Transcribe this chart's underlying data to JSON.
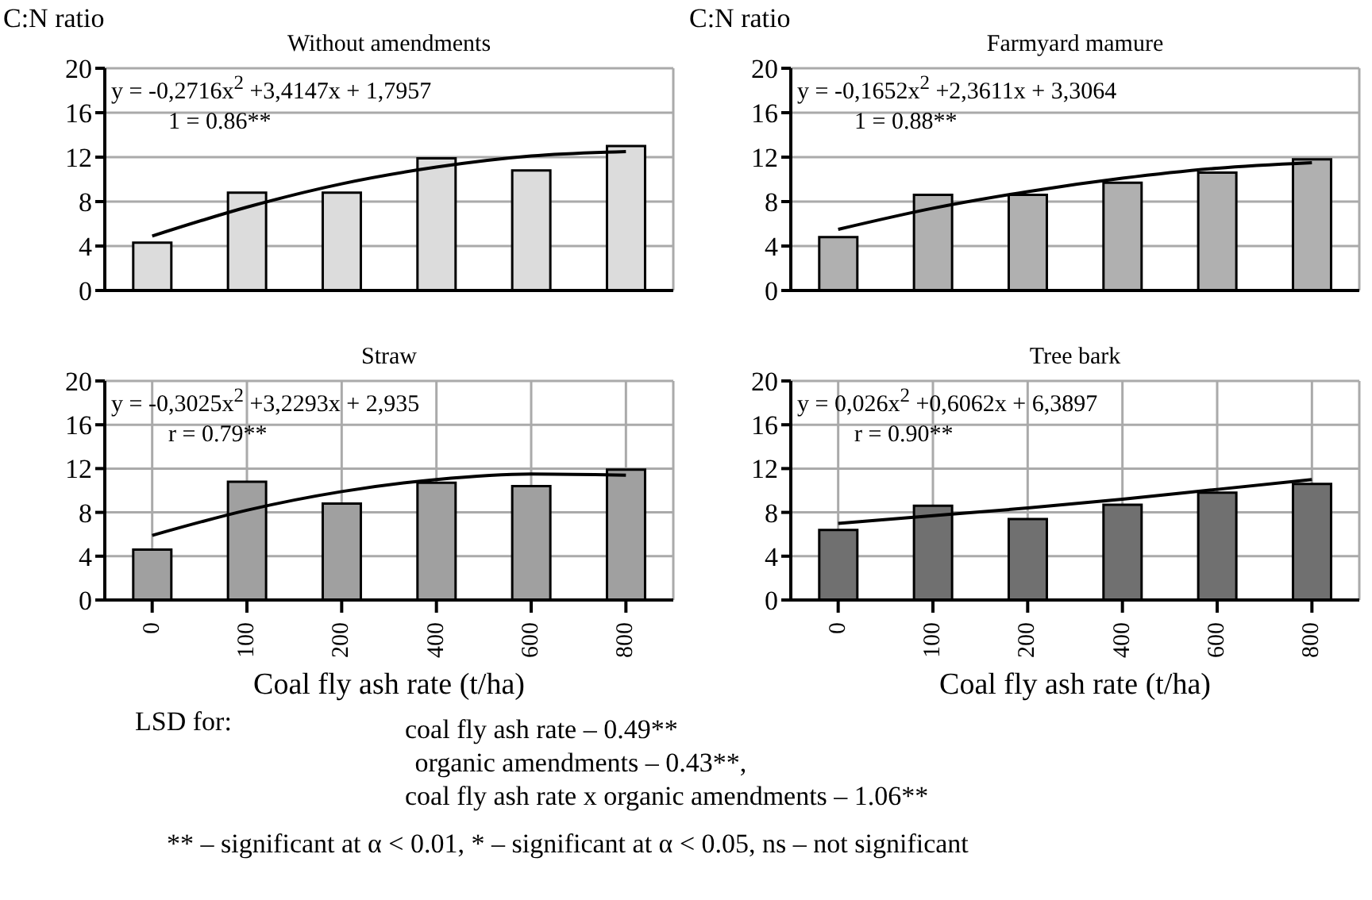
{
  "chart_data": [
    {
      "type": "bar",
      "title": "Without amendments",
      "ylabel": "C:N ratio",
      "categories": [
        "0",
        "100",
        "200",
        "400",
        "600",
        "800"
      ],
      "series": [
        {
          "color": "#dcdcdc",
          "values": [
            4.3,
            8.8,
            8.8,
            11.9,
            10.8,
            13.0
          ]
        },
        {
          "type": "line",
          "color": "#000000",
          "values": [
            4.9,
            7.5,
            9.6,
            11.1,
            12.1,
            12.5
          ]
        }
      ],
      "ylim": [
        0,
        20
      ],
      "yticks": [
        0,
        4,
        8,
        12,
        16,
        20
      ],
      "grid": true,
      "tick_labels": "y",
      "annotations": [
        "y = -0,2716x$^{2}$ +3,4147x + 1,7957",
        "1 = 0.86**"
      ]
    },
    {
      "type": "bar",
      "title": "Farmyard mamure",
      "ylabel": "C:N ratio",
      "categories": [
        "0",
        "100",
        "200",
        "400",
        "600",
        "800"
      ],
      "series": [
        {
          "color": "#b0b0b0",
          "values": [
            4.8,
            8.6,
            8.6,
            9.7,
            10.6,
            11.8
          ]
        },
        {
          "type": "line",
          "color": "#000000",
          "values": [
            5.5,
            7.4,
            8.9,
            10.1,
            11.0,
            11.5
          ]
        }
      ],
      "ylim": [
        0,
        20
      ],
      "yticks": [
        0,
        4,
        8,
        12,
        16,
        20
      ],
      "grid": true,
      "tick_labels": "y",
      "annotations": [
        "y = -0,1652x$^{2}$ +2,3611x + 3,3064",
        "1 = 0.88**"
      ]
    },
    {
      "type": "bar",
      "title": "Straw",
      "xlabel": "Coal fly ash rate (t/ha)",
      "categories": [
        "0",
        "100",
        "200",
        "400",
        "600",
        "800"
      ],
      "series": [
        {
          "color": "#a0a0a0",
          "values": [
            4.6,
            10.8,
            8.8,
            10.7,
            10.4,
            11.9
          ]
        },
        {
          "type": "line",
          "color": "#000000",
          "values": [
            5.9,
            8.2,
            9.9,
            11.0,
            11.5,
            11.4
          ]
        }
      ],
      "ylim": [
        0,
        20
      ],
      "yticks": [
        0,
        4,
        8,
        12,
        16,
        20
      ],
      "grid": true,
      "annotations": [
        "y = -0,3025x$^{2}$ +3,2293x + 2,935",
        "r = 0.79**",
        "LSD for:",
        "coal fly ash rate – 0.49**",
        " organic amendments – 0.43**,",
        "coal fly ash rate x organic amendments – 1.06**",
        "** – significant at α < 0.01, * – significant at α < 0.05, ns – not significant"
      ]
    },
    {
      "type": "bar",
      "title": "Tree bark",
      "xlabel": "Coal fly ash rate (t/ha)",
      "categories": [
        "0",
        "100",
        "200",
        "400",
        "600",
        "800"
      ],
      "series": [
        {
          "color": "#707070",
          "values": [
            6.4,
            8.6,
            7.4,
            8.7,
            9.8,
            10.6
          ]
        },
        {
          "type": "line",
          "color": "#000000",
          "values": [
            7.0,
            7.7,
            8.4,
            9.2,
            10.1,
            11.0
          ]
        }
      ],
      "ylim": [
        0,
        20
      ],
      "yticks": [
        0,
        4,
        8,
        12,
        16,
        20
      ],
      "grid": true,
      "annotations": [
        "y = 0,026x$^{2}$ +0,6062x + 6,3897",
        "r = 0.90**"
      ]
    }
  ]
}
